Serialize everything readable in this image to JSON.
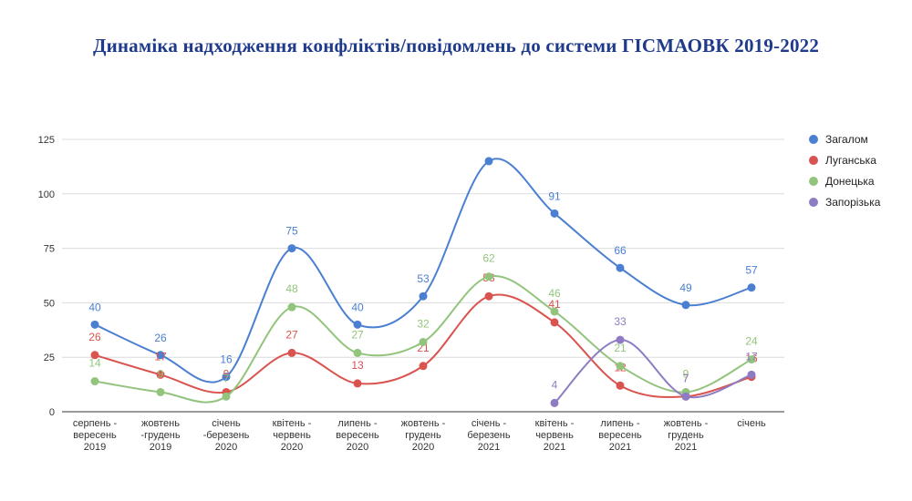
{
  "title": "Динаміка надходження конфліктів/повідомлень до системи ГІСМАОВК 2019-2022",
  "chart_data": {
    "type": "line",
    "title": "Динаміка надходження конфліктів/повідомлень до системи ГІСМАОВК 2019-2022",
    "categories": [
      [
        "серпень -",
        "вересень",
        "2019"
      ],
      [
        "жовтень",
        "-грудень",
        "2019"
      ],
      [
        "січень",
        "-березень",
        "2020"
      ],
      [
        "квітень -",
        "червень",
        "2020"
      ],
      [
        "липень -",
        "вересень",
        "2020"
      ],
      [
        "жовтень -",
        "грудень",
        "2020"
      ],
      [
        "січень -",
        "березень",
        "2021"
      ],
      [
        "квітень -",
        "червень",
        "2021"
      ],
      [
        "липень -",
        "вересень",
        "2021"
      ],
      [
        "жовтень -",
        "грудень",
        "2021"
      ],
      [
        "січень"
      ]
    ],
    "ylim": [
      0,
      125
    ],
    "yticks": [
      0,
      25,
      50,
      75,
      100,
      125
    ],
    "grid": true,
    "legend_position": "right",
    "series": [
      {
        "name": "Загалом",
        "color": "#4a7fd1",
        "values": [
          40,
          26,
          16,
          75,
          40,
          53,
          115,
          91,
          66,
          49,
          57
        ],
        "labels": [
          "40",
          "26",
          "16",
          "75",
          "40",
          "53",
          "",
          "91",
          "66",
          "49",
          "57"
        ]
      },
      {
        "name": "Луганська",
        "color": "#d9534f",
        "values": [
          26,
          17,
          9,
          27,
          13,
          21,
          53,
          41,
          12,
          7,
          16
        ],
        "labels": [
          "26",
          "17",
          "9",
          "27",
          "13",
          "21",
          "53",
          "41",
          "12",
          "7",
          "16"
        ]
      },
      {
        "name": "Донецька",
        "color": "#93c47d",
        "values": [
          14,
          9,
          7,
          48,
          27,
          32,
          62,
          46,
          21,
          9,
          24
        ],
        "labels": [
          "14",
          "9",
          "7",
          "48",
          "27",
          "32",
          "62",
          "46",
          "21",
          "9",
          "24"
        ]
      },
      {
        "name": "Запорізька",
        "color": "#8e7cc3",
        "values": [
          null,
          null,
          null,
          null,
          null,
          null,
          null,
          4,
          33,
          7,
          17
        ],
        "labels": [
          "",
          "",
          "",
          "",
          "",
          "",
          "",
          "4",
          "33",
          "7",
          "17"
        ]
      }
    ]
  }
}
